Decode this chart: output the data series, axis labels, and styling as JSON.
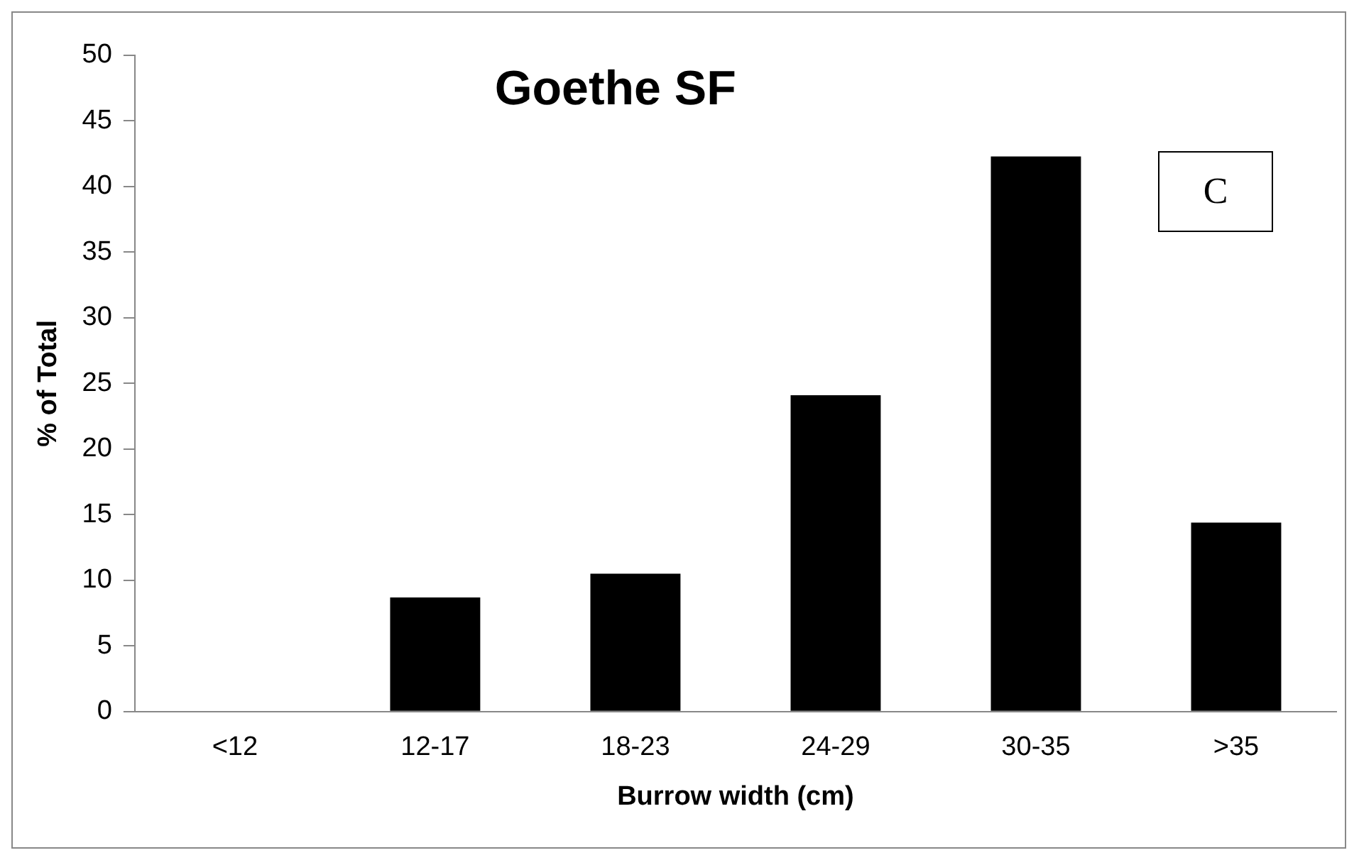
{
  "chart_data": {
    "type": "bar",
    "title": "Goethe SF",
    "xlabel": "Burrow width (cm)",
    "ylabel": "% of Total",
    "categories": [
      "<12",
      "12-17",
      "18-23",
      "24-29",
      "30-35",
      ">35"
    ],
    "values": [
      0,
      8.7,
      10.5,
      24.1,
      42.3,
      14.4
    ],
    "color": "#000000",
    "ylim": [
      0,
      50
    ],
    "yticks": [
      0,
      5,
      10,
      15,
      20,
      25,
      30,
      35,
      40,
      45,
      50
    ],
    "grid": false,
    "legend": false,
    "annotations": [
      "C"
    ]
  }
}
